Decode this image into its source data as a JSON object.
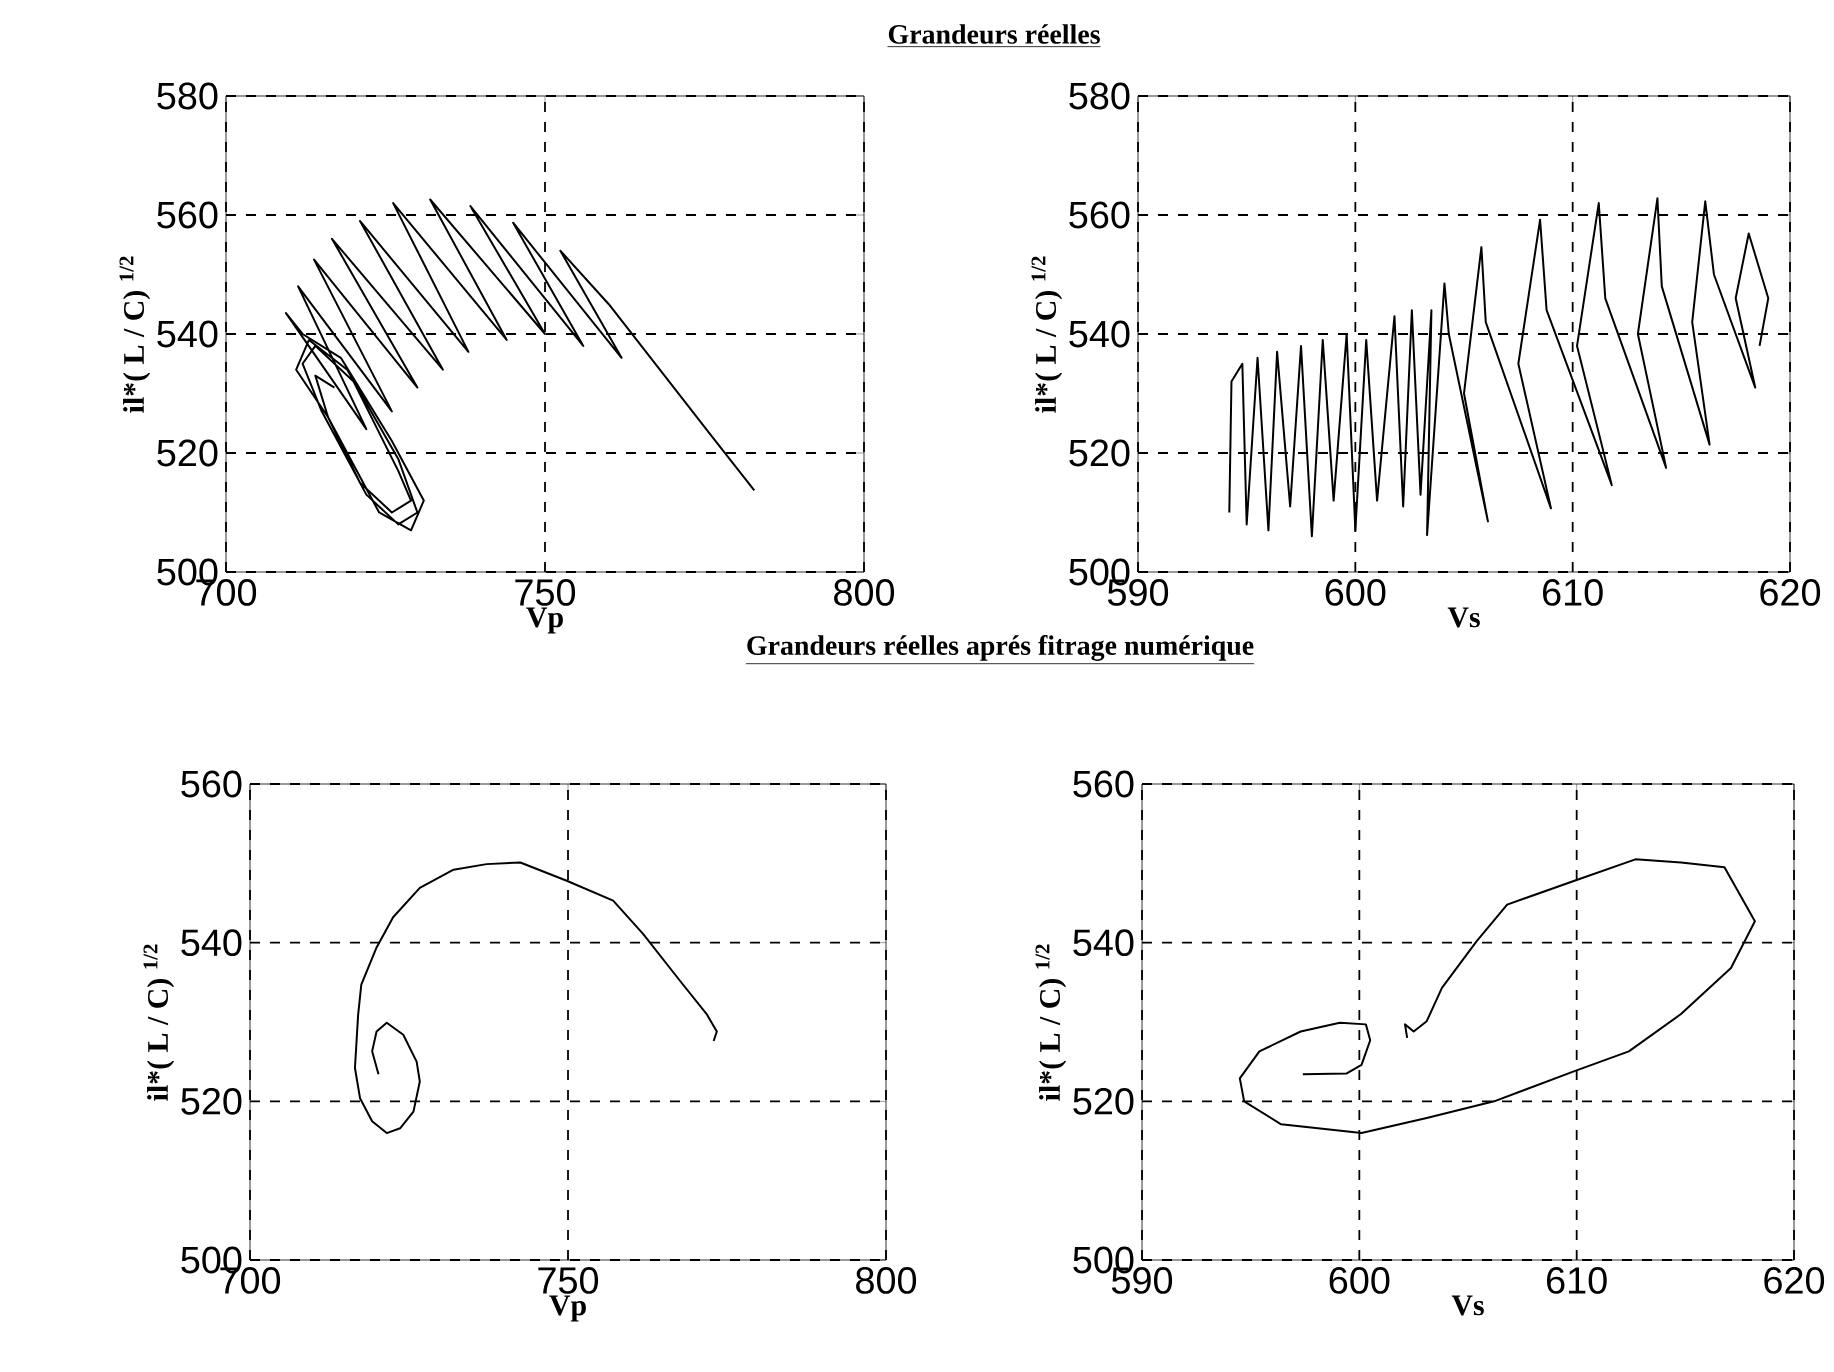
{
  "chart_data": [
    {
      "type": "line",
      "title": "Grandeurs réelles",
      "xlabel": "Vp",
      "ylabel": "il*( L / C) $^{1/2}$",
      "xlim": [
        700,
        800
      ],
      "ylim": [
        500,
        580
      ],
      "xticks": [
        700,
        750,
        800
      ],
      "yticks": [
        500,
        520,
        540,
        560,
        580
      ],
      "grid": true,
      "line_style": "solid",
      "series": [
        {
          "color": "#000000",
          "x": [
            782.8,
            776,
            768,
            760,
            752.4,
            762,
            745,
            756,
            738.3,
            750,
            732,
            744,
            726.2,
            738,
            721,
            734,
            716.6,
            730,
            713.8,
            726,
            711.3,
            722,
            709.4,
            712,
            718,
            726,
            731,
            729,
            724,
            716,
            711,
            713,
            719,
            727,
            730,
            727,
            722,
            715,
            712,
            714,
            720,
            727,
            729,
            726,
            721,
            716,
            714,
            717
          ],
          "values": [
            513.7,
            523,
            534,
            545,
            554,
            536,
            558.7,
            538,
            561.5,
            540,
            562.6,
            539,
            562,
            537,
            559,
            534,
            556,
            531,
            552.5,
            527,
            548,
            524,
            543.5,
            540,
            536,
            522,
            512,
            507,
            510,
            526,
            534,
            539,
            534,
            519,
            510,
            508,
            513,
            527,
            535,
            538,
            532,
            517,
            512,
            510,
            515,
            526,
            533,
            531
          ]
        }
      ]
    },
    {
      "type": "line",
      "xlabel": "Vs",
      "ylabel": "il*( L / C) $^{1/2}$",
      "xlim": [
        590,
        620
      ],
      "ylim": [
        500,
        580
      ],
      "xticks": [
        590,
        600,
        610,
        620
      ],
      "yticks": [
        500,
        520,
        540,
        560,
        580
      ],
      "grid": true,
      "line_style": "solid",
      "series": [
        {
          "color": "#000000",
          "x": [
            594.2,
            594.3,
            594.8,
            595,
            595.5,
            596,
            596.4,
            597,
            597.5,
            598,
            598.5,
            599,
            599.6,
            600,
            600.5,
            601,
            601.8,
            602.2,
            602.6,
            603,
            603.5,
            603.3,
            604.1,
            604.3,
            606.1,
            605,
            605.8,
            606,
            609,
            607.5,
            608.5,
            608.8,
            611.8,
            610.2,
            611.2,
            611.5,
            614.3,
            613,
            613.9,
            614.1,
            616.3,
            615.5,
            616.1,
            616.5,
            618.4,
            617.5,
            618.1,
            619,
            618.6
          ],
          "values": [
            510,
            532,
            535,
            508,
            536,
            507,
            537,
            511,
            538,
            506,
            539,
            512,
            540,
            507,
            539,
            512,
            543,
            511,
            544,
            513,
            544,
            506.2,
            548.5,
            540,
            508.5,
            530,
            554.6,
            542,
            510.7,
            535,
            559.2,
            544,
            514.6,
            538,
            562,
            546,
            517.5,
            540,
            562.8,
            548,
            521.4,
            542,
            562.3,
            550,
            531,
            546,
            556.9,
            546,
            538
          ]
        }
      ]
    },
    {
      "type": "line",
      "title": "Grandeurs réelles  aprés fitrage numérique",
      "xlabel": "Vp",
      "ylabel": "il*( L / C) $^{1/2}$",
      "xlim": [
        700,
        800
      ],
      "ylim": [
        500,
        560
      ],
      "xticks": [
        700,
        750,
        800
      ],
      "yticks": [
        500,
        520,
        540,
        560
      ],
      "grid": true,
      "line_style": "solid",
      "series": [
        {
          "color": "#000000",
          "x": [
            720.2,
            719.2,
            719.9,
            721.5,
            724.1,
            726.2,
            726.7,
            725.7,
            723.6,
            721.5,
            719.2,
            717.3,
            716.5,
            717,
            717.5,
            719.9,
            722.5,
            726.7,
            732,
            737.2,
            742.5,
            749.8,
            757.1,
            761.8,
            767.6,
            771.8,
            773.4,
            772.9
          ],
          "values": [
            523.4,
            526.3,
            528.8,
            529.9,
            528.4,
            525,
            522.5,
            518.7,
            516.6,
            516,
            517.5,
            520.4,
            524.2,
            530.9,
            534.7,
            539.4,
            543.2,
            546.9,
            549.2,
            549.9,
            550.1,
            547.8,
            545.3,
            541.1,
            535.2,
            531,
            528.8,
            527.6
          ]
        }
      ]
    },
    {
      "type": "line",
      "xlabel": "Vs",
      "ylabel": "il*( L / C) $^{1/2}$",
      "xlim": [
        590,
        620
      ],
      "ylim": [
        500,
        560
      ],
      "xticks": [
        590,
        600,
        610,
        620
      ],
      "yticks": [
        500,
        520,
        540,
        560
      ],
      "grid": true,
      "line_style": "solid",
      "series": [
        {
          "color": "#000000",
          "x": [
            597.4,
            599.4,
            600.1,
            600.5,
            600.3,
            599.1,
            597.3,
            595.4,
            594.5,
            594.7,
            596.4,
            600.1,
            603.1,
            606.2,
            609.9,
            612.4,
            614.8,
            617.1,
            618.2,
            616.8,
            614.8,
            612.7,
            609.9,
            606.8,
            605.4,
            603.8,
            603.1,
            602.5,
            602.1,
            602.2
          ],
          "values": [
            523.4,
            523.5,
            524.6,
            527.7,
            529.7,
            529.9,
            528.8,
            526.3,
            522.9,
            520,
            517.1,
            516,
            517.9,
            520,
            523.8,
            526.3,
            531,
            536.8,
            542.7,
            549.5,
            550.1,
            550.5,
            547.8,
            544.8,
            540.2,
            534.3,
            530.1,
            528.8,
            529.7,
            528
          ]
        }
      ]
    }
  ]
}
